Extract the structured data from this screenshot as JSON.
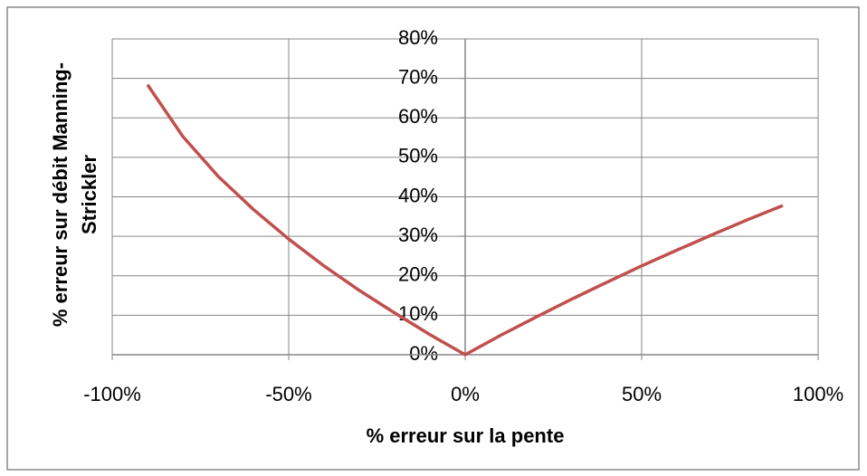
{
  "chart_data": {
    "type": "line",
    "x_label": "% erreur sur la pente",
    "y_label": [
      "% erreur sur débit Manning-",
      "Strickler"
    ],
    "x": [
      -90,
      -80,
      -70,
      -60,
      -50,
      -40,
      -30,
      -20,
      -10,
      0,
      10,
      20,
      30,
      40,
      50,
      60,
      70,
      80,
      90
    ],
    "series": [
      {
        "name": "% erreur sur débit",
        "color": "#c0504d",
        "values": [
          68.4,
          55.3,
          45.2,
          36.8,
          29.3,
          22.5,
          16.3,
          10.6,
          5.1,
          0,
          4.9,
          9.5,
          14.0,
          18.3,
          22.5,
          26.5,
          30.4,
          34.2,
          37.8
        ]
      }
    ],
    "xlim": [
      -100,
      100
    ],
    "xticks": [
      {
        "value": -100,
        "label": "-100%"
      },
      {
        "value": -50,
        "label": "-50%"
      },
      {
        "value": 0,
        "label": "0%"
      },
      {
        "value": 50,
        "label": "50%"
      },
      {
        "value": 100,
        "label": "100%"
      }
    ],
    "ylim": [
      0,
      80
    ],
    "yticks": [
      {
        "value": 0,
        "label": "0%"
      },
      {
        "value": 10,
        "label": "10%"
      },
      {
        "value": 20,
        "label": "20%"
      },
      {
        "value": 30,
        "label": "30%"
      },
      {
        "value": 40,
        "label": "40%"
      },
      {
        "value": 50,
        "label": "50%"
      },
      {
        "value": 60,
        "label": "60%"
      },
      {
        "value": 70,
        "label": "70%"
      },
      {
        "value": 80,
        "label": "80%"
      }
    ],
    "grid": true
  }
}
